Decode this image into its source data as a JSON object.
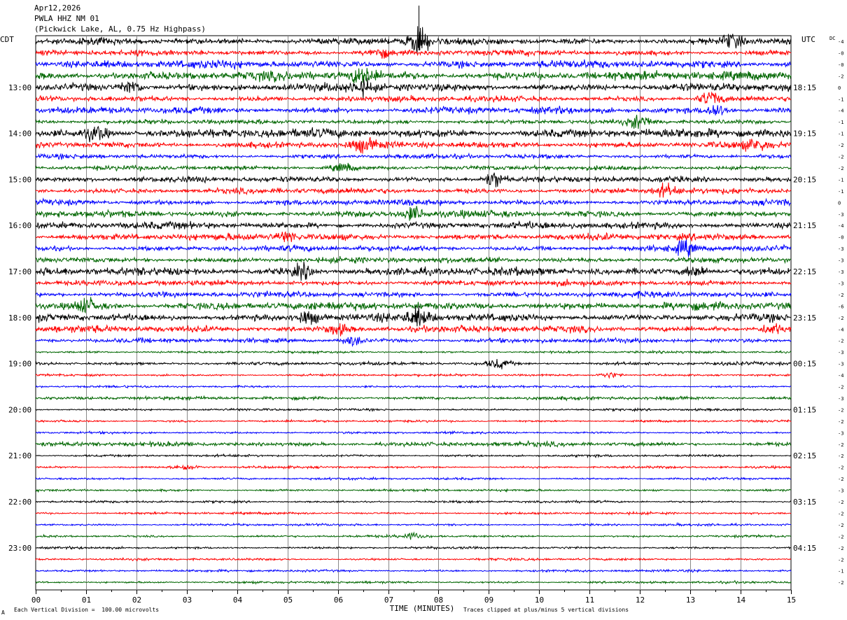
{
  "header": {
    "date": "Apr12,2026",
    "station": "PWLA HHZ NM 01",
    "location": "(Pickwick Lake, AL, 0.75 Hz Highpass)"
  },
  "footer": {
    "division_note": "Each Vertical Division =  100.00 microvolts",
    "clip_note": "Traces clipped at plus/minus 5 vertical divisions",
    "corner_mark": "A"
  },
  "chart_data": {
    "type": "line",
    "subtype": "helicorder",
    "xlabel": "TIME (MINUTES)",
    "x_ticks": [
      "00",
      "01",
      "02",
      "03",
      "04",
      "05",
      "06",
      "07",
      "08",
      "09",
      "10",
      "11",
      "12",
      "13",
      "14",
      "15"
    ],
    "xlim": [
      0,
      15
    ],
    "left_axis_label": "CDT",
    "right_axis_label": "UTC",
    "dc_label": "DC",
    "trace_count": 48,
    "trace_minutes": 15,
    "trace_colors": [
      "#000000",
      "#ff0000",
      "#0000ff",
      "#006600"
    ],
    "left_time_labels": [
      {
        "row": 4,
        "label": "13:00"
      },
      {
        "row": 8,
        "label": "14:00"
      },
      {
        "row": 12,
        "label": "15:00"
      },
      {
        "row": 16,
        "label": "16:00"
      },
      {
        "row": 20,
        "label": "17:00"
      },
      {
        "row": 24,
        "label": "18:00"
      },
      {
        "row": 28,
        "label": "19:00"
      },
      {
        "row": 32,
        "label": "20:00"
      },
      {
        "row": 36,
        "label": "21:00"
      },
      {
        "row": 40,
        "label": "22:00"
      },
      {
        "row": 44,
        "label": "23:00"
      }
    ],
    "right_time_labels": [
      {
        "row": 4,
        "label": "18:15"
      },
      {
        "row": 8,
        "label": "19:15"
      },
      {
        "row": 12,
        "label": "20:15"
      },
      {
        "row": 16,
        "label": "21:15"
      },
      {
        "row": 20,
        "label": "22:15"
      },
      {
        "row": 24,
        "label": "23:15"
      },
      {
        "row": 28,
        "label": "00:15"
      },
      {
        "row": 32,
        "label": "01:15"
      },
      {
        "row": 36,
        "label": "02:15"
      },
      {
        "row": 40,
        "label": "03:15"
      },
      {
        "row": 44,
        "label": "04:15"
      }
    ],
    "dc_offsets": [
      "-4",
      "-0",
      "-0",
      "-2",
      "0",
      "-1",
      "-4",
      "-1",
      "-1",
      "-2",
      "-2",
      "-2",
      "-1",
      "-1",
      "0",
      "-3",
      "-4",
      "-0",
      "-3",
      "-3",
      "-3",
      "-3",
      "-2",
      "-6",
      "-2",
      "-4",
      "-2",
      "-3",
      "-3",
      "-4",
      "-2",
      "-3",
      "-2",
      "-2",
      "-3",
      "-2",
      "-2",
      "-2",
      "-2",
      "-3",
      "-2",
      "-2",
      "-2",
      "-2",
      "-2",
      "-2",
      "-1",
      "-2"
    ],
    "grid": true,
    "activity": [
      6,
      5,
      7,
      8,
      7,
      5,
      6,
      4,
      8,
      6,
      4,
      4,
      5,
      5,
      5,
      6,
      6,
      6,
      5,
      5,
      7,
      5,
      5,
      7,
      7,
      6,
      4,
      2,
      3,
      2,
      2,
      3,
      2,
      2,
      2,
      4,
      2,
      2,
      2,
      2,
      2,
      2,
      2,
      2,
      2,
      2,
      2,
      2
    ],
    "events": [
      {
        "row": 0,
        "minute": 7.6,
        "amplitude": 3.5
      },
      {
        "row": 0,
        "minute": 13.8,
        "amplitude": 2
      },
      {
        "row": 1,
        "minute": 6.8,
        "amplitude": 1.5
      },
      {
        "row": 3,
        "minute": 6.5,
        "amplitude": 2.5
      },
      {
        "row": 4,
        "minute": 1.9,
        "amplitude": 2
      },
      {
        "row": 4,
        "minute": 6.5,
        "amplitude": 2
      },
      {
        "row": 5,
        "minute": 13.4,
        "amplitude": 2.5
      },
      {
        "row": 6,
        "minute": 13.5,
        "amplitude": 2
      },
      {
        "row": 7,
        "minute": 12.0,
        "amplitude": 2
      },
      {
        "row": 8,
        "minute": 1.2,
        "amplitude": 2
      },
      {
        "row": 9,
        "minute": 6.5,
        "amplitude": 1.5
      },
      {
        "row": 9,
        "minute": 14.3,
        "amplitude": 1.5
      },
      {
        "row": 11,
        "minute": 6.1,
        "amplitude": 1.5
      },
      {
        "row": 12,
        "minute": 9.1,
        "amplitude": 2.5
      },
      {
        "row": 13,
        "minute": 12.5,
        "amplitude": 2
      },
      {
        "row": 15,
        "minute": 7.5,
        "amplitude": 2
      },
      {
        "row": 17,
        "minute": 5.0,
        "amplitude": 1.5
      },
      {
        "row": 18,
        "minute": 12.9,
        "amplitude": 2
      },
      {
        "row": 20,
        "minute": 5.3,
        "amplitude": 2
      },
      {
        "row": 20,
        "minute": 13.1,
        "amplitude": 2
      },
      {
        "row": 23,
        "minute": 1.0,
        "amplitude": 2
      },
      {
        "row": 24,
        "minute": 7.6,
        "amplitude": 2.5
      },
      {
        "row": 24,
        "minute": 5.4,
        "amplitude": 2
      },
      {
        "row": 25,
        "minute": 6.0,
        "amplitude": 1.5
      },
      {
        "row": 25,
        "minute": 14.6,
        "amplitude": 1.5
      },
      {
        "row": 26,
        "minute": 6.3,
        "amplitude": 1.5
      },
      {
        "row": 28,
        "minute": 9.2,
        "amplitude": 1.5
      },
      {
        "row": 29,
        "minute": 11.4,
        "amplitude": 1
      },
      {
        "row": 37,
        "minute": 3.0,
        "amplitude": 1
      },
      {
        "row": 43,
        "minute": 7.5,
        "amplitude": 1
      }
    ]
  }
}
